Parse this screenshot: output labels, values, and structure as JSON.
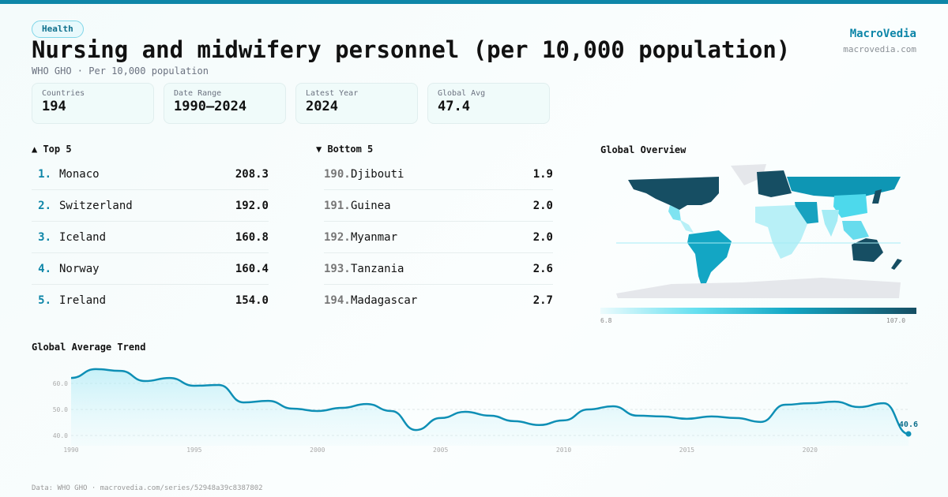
{
  "tag": "Health",
  "title": "Nursing and midwifery personnel (per 10,000 population)",
  "subtitle": "WHO GHO · Per 10,000 population",
  "brand": {
    "name": "MacroVedia",
    "url": "macrovedia.com"
  },
  "stats": [
    {
      "label": "Countries",
      "value": "194"
    },
    {
      "label": "Date Range",
      "value": "1990–2024"
    },
    {
      "label": "Latest Year",
      "value": "2024"
    },
    {
      "label": "Global Avg",
      "value": "47.4"
    }
  ],
  "top": {
    "title": "▲ Top 5",
    "items": [
      {
        "rank": "1.",
        "name": "Monaco",
        "value": "208.3"
      },
      {
        "rank": "2.",
        "name": "Switzerland",
        "value": "192.0"
      },
      {
        "rank": "3.",
        "name": "Iceland",
        "value": "160.8"
      },
      {
        "rank": "4.",
        "name": "Norway",
        "value": "160.4"
      },
      {
        "rank": "5.",
        "name": "Ireland",
        "value": "154.0"
      }
    ]
  },
  "bottom": {
    "title": "▼ Bottom 5",
    "items": [
      {
        "rank": "190.",
        "name": "Djibouti",
        "value": "1.9"
      },
      {
        "rank": "191.",
        "name": "Guinea",
        "value": "2.0"
      },
      {
        "rank": "192.",
        "name": "Myanmar",
        "value": "2.0"
      },
      {
        "rank": "193.",
        "name": "Tanzania",
        "value": "2.6"
      },
      {
        "rank": "194.",
        "name": "Madagascar",
        "value": "2.7"
      }
    ]
  },
  "map": {
    "title": "Global Overview",
    "min_label": "6.8",
    "max_label": "107.0"
  },
  "footer": "Data: WHO GHO · macrovedia.com/series/52948a39c8387802",
  "chart_data": {
    "type": "area",
    "title": "Global Average Trend",
    "x": [
      1990,
      1991,
      1992,
      1993,
      1994,
      1995,
      1996,
      1997,
      1998,
      1999,
      2000,
      2001,
      2002,
      2003,
      2004,
      2005,
      2006,
      2007,
      2008,
      2009,
      2010,
      2011,
      2012,
      2013,
      2014,
      2015,
      2016,
      2017,
      2018,
      2019,
      2020,
      2021,
      2022,
      2023,
      2024
    ],
    "values": [
      62.1,
      65.5,
      64.8,
      60.9,
      62.1,
      59.1,
      59.4,
      52.7,
      53.3,
      50.3,
      49.4,
      50.6,
      52.1,
      49.4,
      42.1,
      46.7,
      49.1,
      47.6,
      45.5,
      44.0,
      45.8,
      50.0,
      51.2,
      47.6,
      47.3,
      46.4,
      47.3,
      46.7,
      45.2,
      51.8,
      52.4,
      53.0,
      50.9,
      52.4,
      40.6
    ],
    "yticks": [
      "40.0",
      "50.0",
      "60.0"
    ],
    "xticks": [
      "1990",
      "1995",
      "2000",
      "2005",
      "2010",
      "2015",
      "2020"
    ],
    "ylim": [
      40,
      60
    ],
    "last_label": "40.6",
    "color": "#0e8fb5"
  }
}
